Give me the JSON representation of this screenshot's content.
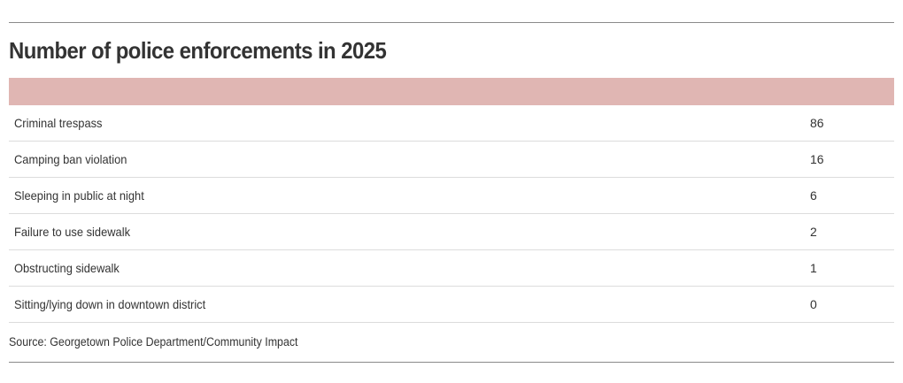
{
  "chart_data": {
    "type": "table",
    "title": "Number of police enforcements in 2025",
    "header_color": "#e0b6b3",
    "rows": [
      {
        "label": "Criminal trespass",
        "value": "86"
      },
      {
        "label": "Camping ban violation",
        "value": "16"
      },
      {
        "label": "Sleeping in public at night",
        "value": "6"
      },
      {
        "label": "Failure to use sidewalk",
        "value": "2"
      },
      {
        "label": "Obstructing sidewalk",
        "value": "1"
      },
      {
        "label": "Sitting/lying down in downtown district",
        "value": "0"
      }
    ],
    "source": "Source: Georgetown Police Department/Community Impact"
  }
}
